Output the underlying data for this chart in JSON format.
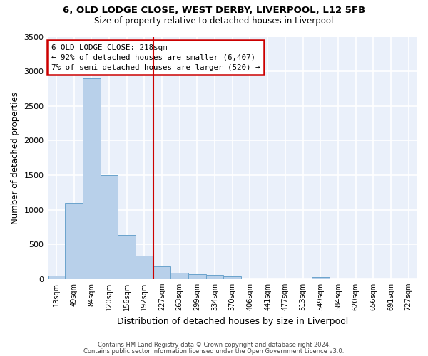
{
  "title_line1": "6, OLD LODGE CLOSE, WEST DERBY, LIVERPOOL, L12 5FB",
  "title_line2": "Size of property relative to detached houses in Liverpool",
  "xlabel": "Distribution of detached houses by size in Liverpool",
  "ylabel": "Number of detached properties",
  "categories": [
    "13sqm",
    "49sqm",
    "84sqm",
    "120sqm",
    "156sqm",
    "192sqm",
    "227sqm",
    "263sqm",
    "299sqm",
    "334sqm",
    "370sqm",
    "406sqm",
    "441sqm",
    "477sqm",
    "513sqm",
    "549sqm",
    "584sqm",
    "620sqm",
    "656sqm",
    "691sqm",
    "727sqm"
  ],
  "values": [
    50,
    1100,
    2900,
    1500,
    640,
    340,
    185,
    95,
    70,
    55,
    35,
    0,
    0,
    0,
    0,
    30,
    0,
    0,
    0,
    0,
    0
  ],
  "bar_color": "#b8d0ea",
  "bar_edgecolor": "#6aa3cc",
  "vline_x_idx": 6,
  "vline_color": "#cc0000",
  "annotation_text": "6 OLD LODGE CLOSE: 218sqm\n← 92% of detached houses are smaller (6,407)\n7% of semi-detached houses are larger (520) →",
  "annotation_box_color": "#cc0000",
  "ylim": [
    0,
    3500
  ],
  "yticks": [
    0,
    500,
    1000,
    1500,
    2000,
    2500,
    3000,
    3500
  ],
  "bg_color": "#eaf0fa",
  "grid_color": "#ffffff",
  "footer_line1": "Contains HM Land Registry data © Crown copyright and database right 2024.",
  "footer_line2": "Contains public sector information licensed under the Open Government Licence v3.0."
}
